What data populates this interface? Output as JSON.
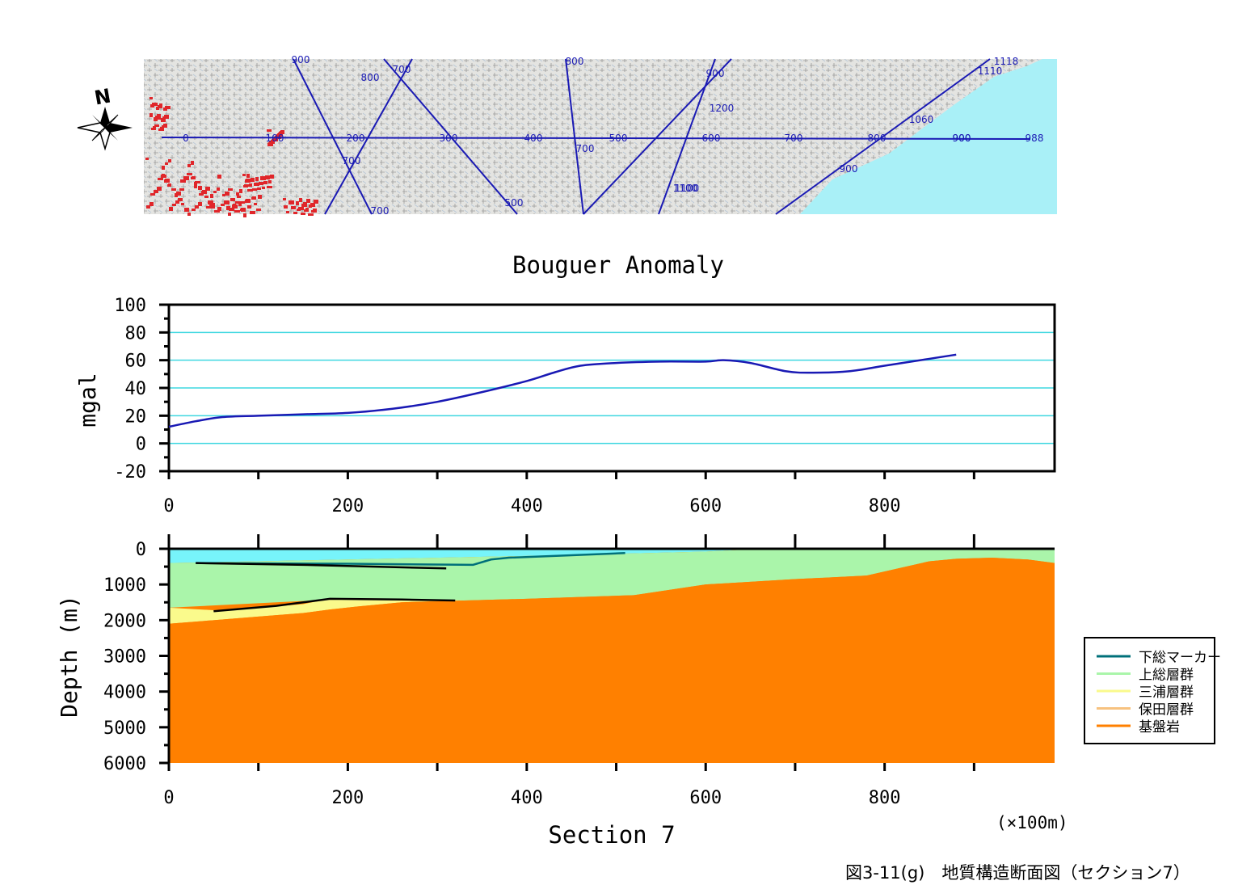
{
  "map": {
    "north_label": "N",
    "profile_labels": [
      "0",
      "100",
      "200",
      "300",
      "400",
      "500",
      "600",
      "700",
      "800",
      "900",
      "988"
    ],
    "contour_labels": [
      "900",
      "800",
      "700",
      "800",
      "900",
      "1200",
      "1118",
      "1110",
      "1060",
      "900",
      "1100",
      "700",
      "500",
      "700",
      "700",
      "1100",
      "900"
    ],
    "colors": {
      "land": "#e6e6e3",
      "sea": "#a9f0f7",
      "lines": "#1a1ab4",
      "urban": "#e0262a"
    }
  },
  "caption": "図3-11(g)　地質構造断面図（セクション7）",
  "unit_note": "(×100m)",
  "chart_data": [
    {
      "type": "line",
      "title": "Bouguer Anomaly",
      "xlabel": "",
      "ylabel": "mgal",
      "xlim": [
        0,
        990
      ],
      "ylim": [
        -20,
        100
      ],
      "x_ticks": [
        0,
        200,
        400,
        600,
        800
      ],
      "y_ticks": [
        100,
        80,
        60,
        40,
        20,
        0,
        -20
      ],
      "grid": true,
      "grid_color": "#3fd7e0",
      "line_color": "#1919b4",
      "series": [
        {
          "x": [
            0,
            30,
            60,
            100,
            150,
            200,
            250,
            300,
            350,
            400,
            430,
            460,
            500,
            550,
            600,
            620,
            650,
            690,
            720,
            760,
            800,
            850,
            880
          ],
          "y": [
            12,
            16,
            19,
            20,
            21,
            22,
            25,
            30,
            37,
            45,
            51,
            56,
            58,
            59,
            59,
            60,
            58,
            52,
            51,
            52,
            56,
            61,
            64
          ]
        }
      ]
    },
    {
      "type": "area",
      "title": "",
      "xlabel": "Section 7",
      "ylabel": "Depth (m)",
      "xlim": [
        0,
        990
      ],
      "ylim": [
        6000,
        0
      ],
      "x_ticks": [
        0,
        200,
        400,
        600,
        800
      ],
      "y_ticks": [
        0,
        1000,
        2000,
        3000,
        4000,
        5000,
        6000
      ],
      "layers": [
        {
          "name": "cyan_top",
          "color": "#77f4fa",
          "top": {
            "x": [
              0,
              990
            ],
            "y": [
              0,
              0
            ]
          },
          "bottom": {
            "x": [
              0,
              200,
              400,
              600,
              660,
              990
            ],
            "y": [
              400,
              300,
              200,
              80,
              0,
              0
            ]
          }
        },
        {
          "name": "上総層群",
          "color": "#aaf5aa",
          "top": {
            "x": [
              0,
              200,
              400,
              600,
              660,
              990
            ],
            "y": [
              400,
              300,
              200,
              80,
              0,
              0
            ]
          },
          "bottom": {
            "x": [
              0,
              200,
              330,
              400,
              520,
              600,
              700,
              780,
              850,
              880,
              920,
              960,
              990
            ],
            "y": [
              1650,
              1400,
              1450,
              1400,
              1300,
              1000,
              850,
              750,
              350,
              280,
              250,
              300,
              400
            ]
          }
        },
        {
          "name": "三浦層群",
          "color": "#fafa8c",
          "top": {
            "x": [
              0,
              50,
              100,
              150,
              180,
              210,
              260,
              330
            ],
            "y": [
              1650,
              1720,
              1650,
              1550,
              1400,
              1380,
              1400,
              1450
            ]
          },
          "bottom": {
            "x": [
              0,
              50,
              100,
              150,
              180,
              210,
              260,
              330
            ],
            "y": [
              2100,
              2000,
              1900,
              1800,
              1700,
              1620,
              1500,
              1450
            ]
          }
        },
        {
          "name": "基盤岩",
          "color": "#ff8000",
          "top": {
            "x": [
              0,
              50,
              100,
              150,
              180,
              210,
              260,
              330,
              400,
              520,
              600,
              700,
              780,
              850,
              880,
              920,
              960,
              990
            ],
            "y": [
              2100,
              2000,
              1900,
              1800,
              1700,
              1620,
              1500,
              1450,
              1400,
              1300,
              1000,
              850,
              750,
              350,
              280,
              250,
              300,
              400
            ]
          },
          "bottom": {
            "x": [
              0,
              990
            ],
            "y": [
              6000,
              6000
            ]
          }
        }
      ],
      "marker_lines": [
        {
          "name": "下総マーカー",
          "color": "#00707a",
          "x": [
            30,
            200,
            340,
            360,
            380,
            450,
            510
          ],
          "y": [
            400,
            420,
            450,
            300,
            250,
            180,
            120
          ]
        },
        {
          "name": "boundary_1",
          "color": "#000000",
          "x": [
            30,
            150,
            310
          ],
          "y": [
            400,
            450,
            550
          ]
        },
        {
          "name": "boundary_2",
          "color": "#000000",
          "x": [
            50,
            120,
            180,
            260,
            320
          ],
          "y": [
            1750,
            1600,
            1400,
            1420,
            1450
          ]
        }
      ],
      "legend": {
        "position": "right",
        "entries": [
          {
            "label": "下総マーカー",
            "color": "#00707a"
          },
          {
            "label": "上総層群",
            "color": "#aaf5aa"
          },
          {
            "label": "三浦層群",
            "color": "#fafa8c"
          },
          {
            "label": "保田層群",
            "color": "#f7c27f"
          },
          {
            "label": "基盤岩",
            "color": "#ff8000"
          }
        ]
      }
    }
  ]
}
